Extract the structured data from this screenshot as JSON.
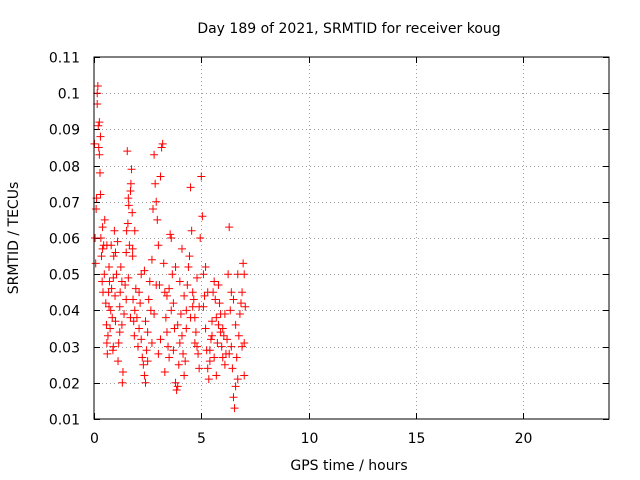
{
  "chart_data": {
    "type": "scatter",
    "title": "Day 189 of 2021, SRMTID for receiver koug",
    "xlabel": "GPS time / hours",
    "ylabel": "SRMTID / TECUs",
    "xlim": [
      0,
      24
    ],
    "ylim": [
      0.01,
      0.11
    ],
    "x_ticks": [
      0,
      5,
      10,
      15,
      20
    ],
    "x_tick_labels": [
      "0",
      "5",
      "10",
      "15",
      "20"
    ],
    "y_ticks": [
      0.01,
      0.02,
      0.03,
      0.04,
      0.05,
      0.06,
      0.07,
      0.08,
      0.09,
      0.1,
      0.11
    ],
    "y_tick_labels": [
      "0.01",
      "0.02",
      "0.03",
      "0.04",
      "0.05",
      "0.06",
      "0.07",
      "0.08",
      "0.09",
      "0.1",
      "0.11"
    ],
    "grid": true,
    "marker": "plus",
    "color": "#ff0000",
    "series": [
      {
        "name": "SRMTID",
        "points": [
          [
            0.02,
            0.086
          ],
          [
            0.05,
            0.06
          ],
          [
            0.08,
            0.053
          ],
          [
            0.1,
            0.068
          ],
          [
            0.12,
            0.071
          ],
          [
            0.15,
            0.1
          ],
          [
            0.18,
            0.102
          ],
          [
            0.2,
            0.091
          ],
          [
            0.22,
            0.085
          ],
          [
            0.25,
            0.083
          ],
          [
            0.28,
            0.078
          ],
          [
            0.3,
            0.088
          ],
          [
            0.32,
            0.06
          ],
          [
            0.35,
            0.055
          ],
          [
            0.38,
            0.048
          ],
          [
            0.4,
            0.057
          ],
          [
            0.42,
            0.045
          ],
          [
            0.45,
            0.058
          ],
          [
            0.48,
            0.05
          ],
          [
            0.5,
            0.065
          ],
          [
            0.55,
            0.042
          ],
          [
            0.58,
            0.036
          ],
          [
            0.6,
            0.031
          ],
          [
            0.62,
            0.028
          ],
          [
            0.65,
            0.033
          ],
          [
            0.68,
            0.045
          ],
          [
            0.7,
            0.052
          ],
          [
            0.72,
            0.048
          ],
          [
            0.75,
            0.035
          ],
          [
            0.78,
            0.04
          ],
          [
            0.8,
            0.058
          ],
          [
            0.82,
            0.046
          ],
          [
            0.85,
            0.038
          ],
          [
            0.88,
            0.029
          ],
          [
            0.9,
            0.03
          ],
          [
            0.92,
            0.055
          ],
          [
            0.95,
            0.062
          ],
          [
            0.98,
            0.044
          ],
          [
            1.0,
            0.037
          ],
          [
            1.05,
            0.05
          ],
          [
            1.1,
            0.059
          ],
          [
            1.12,
            0.026
          ],
          [
            1.15,
            0.031
          ],
          [
            1.2,
            0.041
          ],
          [
            1.22,
            0.045
          ],
          [
            1.25,
            0.052
          ],
          [
            1.3,
            0.048
          ],
          [
            1.32,
            0.02
          ],
          [
            1.35,
            0.023
          ],
          [
            1.4,
            0.039
          ],
          [
            1.45,
            0.047
          ],
          [
            1.5,
            0.056
          ],
          [
            1.52,
            0.062
          ],
          [
            1.55,
            0.084
          ],
          [
            1.58,
            0.064
          ],
          [
            1.6,
            0.071
          ],
          [
            1.62,
            0.069
          ],
          [
            1.65,
            0.058
          ],
          [
            1.7,
            0.073
          ],
          [
            1.72,
            0.075
          ],
          [
            1.75,
            0.079
          ],
          [
            1.78,
            0.067
          ],
          [
            1.8,
            0.055
          ],
          [
            1.82,
            0.043
          ],
          [
            1.85,
            0.037
          ],
          [
            1.88,
            0.033
          ],
          [
            1.9,
            0.04
          ],
          [
            1.95,
            0.046
          ],
          [
            2.0,
            0.038
          ],
          [
            2.05,
            0.03
          ],
          [
            2.1,
            0.035
          ],
          [
            2.15,
            0.042
          ],
          [
            2.2,
            0.032
          ],
          [
            2.25,
            0.027
          ],
          [
            2.3,
            0.025
          ],
          [
            2.35,
            0.022
          ],
          [
            2.4,
            0.02
          ],
          [
            2.45,
            0.029
          ],
          [
            2.5,
            0.034
          ],
          [
            2.55,
            0.043
          ],
          [
            2.6,
            0.048
          ],
          [
            2.65,
            0.04
          ],
          [
            2.7,
            0.054
          ],
          [
            2.75,
            0.068
          ],
          [
            2.8,
            0.083
          ],
          [
            2.85,
            0.075
          ],
          [
            2.9,
            0.07
          ],
          [
            2.95,
            0.065
          ],
          [
            3.0,
            0.058
          ],
          [
            3.05,
            0.047
          ],
          [
            3.1,
            0.077
          ],
          [
            3.15,
            0.085
          ],
          [
            3.2,
            0.086
          ],
          [
            3.25,
            0.053
          ],
          [
            3.3,
            0.045
          ],
          [
            3.35,
            0.038
          ],
          [
            3.4,
            0.034
          ],
          [
            3.45,
            0.03
          ],
          [
            3.5,
            0.027
          ],
          [
            3.55,
            0.061
          ],
          [
            3.6,
            0.06
          ],
          [
            3.65,
            0.05
          ],
          [
            3.7,
            0.042
          ],
          [
            3.75,
            0.035
          ],
          [
            3.8,
            0.02
          ],
          [
            3.85,
            0.018
          ],
          [
            3.9,
            0.019
          ],
          [
            3.95,
            0.025
          ],
          [
            4.0,
            0.031
          ],
          [
            4.05,
            0.039
          ],
          [
            4.1,
            0.033
          ],
          [
            4.15,
            0.028
          ],
          [
            4.2,
            0.022
          ],
          [
            4.25,
            0.026
          ],
          [
            4.3,
            0.04
          ],
          [
            4.35,
            0.047
          ],
          [
            4.4,
            0.052
          ],
          [
            4.45,
            0.055
          ],
          [
            4.5,
            0.074
          ],
          [
            4.55,
            0.062
          ],
          [
            4.6,
            0.045
          ],
          [
            4.65,
            0.043
          ],
          [
            4.7,
            0.038
          ],
          [
            4.75,
            0.034
          ],
          [
            4.8,
            0.03
          ],
          [
            4.85,
            0.028
          ],
          [
            4.9,
            0.041
          ],
          [
            4.95,
            0.06
          ],
          [
            5.0,
            0.077
          ],
          [
            5.05,
            0.066
          ],
          [
            5.1,
            0.05
          ],
          [
            5.15,
            0.044
          ],
          [
            5.2,
            0.035
          ],
          [
            5.25,
            0.029
          ],
          [
            5.3,
            0.024
          ],
          [
            5.35,
            0.021
          ],
          [
            5.4,
            0.026
          ],
          [
            5.45,
            0.032
          ],
          [
            5.5,
            0.037
          ],
          [
            5.55,
            0.045
          ],
          [
            5.6,
            0.048
          ],
          [
            5.65,
            0.043
          ],
          [
            5.7,
            0.038
          ],
          [
            5.75,
            0.031
          ],
          [
            5.8,
            0.036
          ],
          [
            5.85,
            0.042
          ],
          [
            5.9,
            0.034
          ],
          [
            5.95,
            0.03
          ],
          [
            6.0,
            0.027
          ],
          [
            6.05,
            0.033
          ],
          [
            6.1,
            0.025
          ],
          [
            6.15,
            0.028
          ],
          [
            6.2,
            0.032
          ],
          [
            6.25,
            0.05
          ],
          [
            6.3,
            0.063
          ],
          [
            6.35,
            0.04
          ],
          [
            6.4,
            0.03
          ],
          [
            6.45,
            0.024
          ],
          [
            6.5,
            0.016
          ],
          [
            6.55,
            0.013
          ],
          [
            6.6,
            0.019
          ],
          [
            6.65,
            0.027
          ],
          [
            6.7,
            0.05
          ],
          [
            6.75,
            0.033
          ],
          [
            6.8,
            0.039
          ],
          [
            6.85,
            0.042
          ],
          [
            6.9,
            0.045
          ],
          [
            6.95,
            0.053
          ],
          [
            7.0,
            0.05
          ],
          [
            7.05,
            0.041
          ],
          [
            0.3,
            0.072
          ],
          [
            0.6,
            0.058
          ],
          [
            0.9,
            0.049
          ],
          [
            1.2,
            0.034
          ],
          [
            1.5,
            0.043
          ],
          [
            1.8,
            0.057
          ],
          [
            2.1,
            0.045
          ],
          [
            2.4,
            0.037
          ],
          [
            2.7,
            0.031
          ],
          [
            3.0,
            0.028
          ],
          [
            3.3,
            0.023
          ],
          [
            3.6,
            0.04
          ],
          [
            3.9,
            0.036
          ],
          [
            4.2,
            0.044
          ],
          [
            4.5,
            0.038
          ],
          [
            4.8,
            0.049
          ],
          [
            5.1,
            0.041
          ],
          [
            5.4,
            0.029
          ],
          [
            5.7,
            0.022
          ],
          [
            6.0,
            0.035
          ],
          [
            6.3,
            0.028
          ],
          [
            6.6,
            0.036
          ],
          [
            6.9,
            0.03
          ],
          [
            7.0,
            0.022
          ],
          [
            0.4,
            0.063
          ],
          [
            0.7,
            0.041
          ],
          [
            1.0,
            0.056
          ],
          [
            1.3,
            0.036
          ],
          [
            1.6,
            0.049
          ],
          [
            1.9,
            0.062
          ],
          [
            2.2,
            0.05
          ],
          [
            2.5,
            0.026
          ],
          [
            2.8,
            0.039
          ],
          [
            3.1,
            0.032
          ],
          [
            3.4,
            0.044
          ],
          [
            3.7,
            0.029
          ],
          [
            4.0,
            0.048
          ],
          [
            4.3,
            0.035
          ],
          [
            4.6,
            0.041
          ],
          [
            4.9,
            0.024
          ],
          [
            5.2,
            0.052
          ],
          [
            5.5,
            0.033
          ],
          [
            5.8,
            0.047
          ],
          [
            6.1,
            0.039
          ],
          [
            6.4,
            0.045
          ],
          [
            6.7,
            0.021
          ],
          [
            7.0,
            0.031
          ],
          [
            0.15,
            0.097
          ],
          [
            0.25,
            0.092
          ],
          [
            2.35,
            0.051
          ],
          [
            3.5,
            0.046
          ],
          [
            4.1,
            0.057
          ],
          [
            4.7,
            0.031
          ],
          [
            5.3,
            0.045
          ],
          [
            5.9,
            0.039
          ],
          [
            6.5,
            0.043
          ],
          [
            1.7,
            0.038
          ],
          [
            2.9,
            0.047
          ],
          [
            3.8,
            0.052
          ],
          [
            5.6,
            0.027
          ]
        ]
      }
    ]
  }
}
